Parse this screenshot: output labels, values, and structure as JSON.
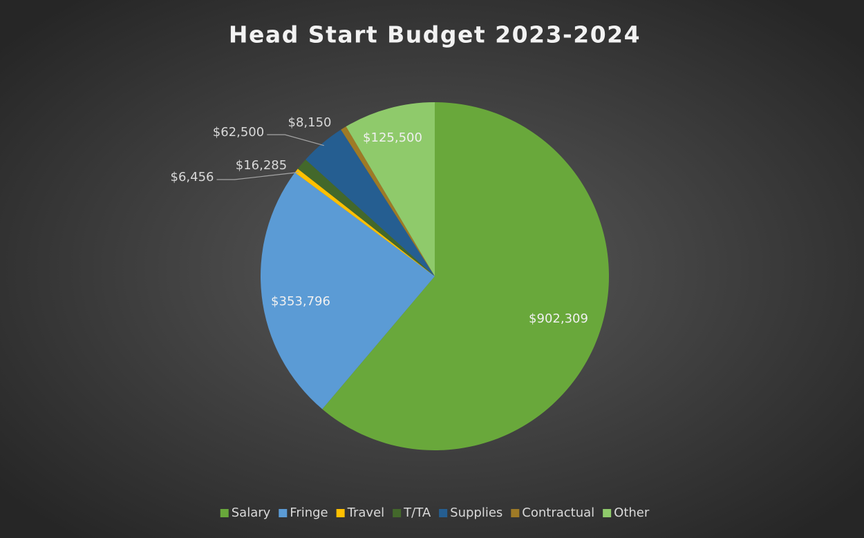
{
  "chart_data": {
    "type": "pie",
    "title": "Head Start Budget 2023-2024",
    "categories": [
      "Salary",
      "Fringe",
      "Travel",
      "T/TA",
      "Supplies",
      "Contractual",
      "Other"
    ],
    "values": [
      902309,
      353796,
      6456,
      16285,
      62500,
      8150,
      125500
    ],
    "value_labels": [
      "$902,309",
      "$353,796",
      "$6,456",
      "$16,285",
      "$62,500",
      "$8,150",
      "$125,500"
    ],
    "colors": [
      "#69a83b",
      "#5b9bd5",
      "#ffc000",
      "#43682b",
      "#255e91",
      "#9e7a26",
      "#8fca6b"
    ],
    "legend": "bottom"
  }
}
